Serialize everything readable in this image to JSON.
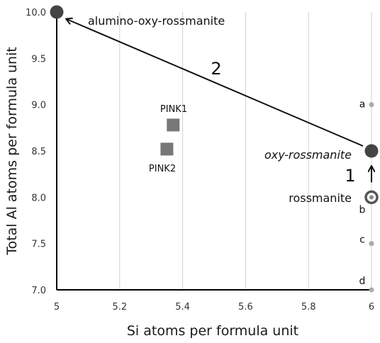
{
  "chart_data": {
    "type": "scatter",
    "xlabel": "Si atoms per formula unit",
    "ylabel": "Total Al atoms per formula unit",
    "xlim": [
      5,
      6
    ],
    "ylim": [
      7.0,
      10.0
    ],
    "x_ticks": [
      5,
      5.2,
      5.4,
      5.6,
      5.8,
      6
    ],
    "x_tick_labels": [
      "5",
      "5.2",
      "5.4",
      "5.6",
      "5.8",
      "6"
    ],
    "y_ticks": [
      7.0,
      7.5,
      8.0,
      8.5,
      9.0,
      9.5,
      10.0
    ],
    "y_tick_labels": [
      "7.0",
      "7.5",
      "8.0",
      "8.5",
      "9.0",
      "9.5",
      "10.0"
    ],
    "grid": "vertical",
    "endmembers": [
      {
        "label": "alumino-oxy-rossmanite",
        "x": 5,
        "y": 10.0,
        "marker": "circle",
        "color": "#444444"
      },
      {
        "label": "oxy-rossmanite",
        "x": 6,
        "y": 8.5,
        "marker": "circle",
        "color": "#444444",
        "italic": true
      },
      {
        "label": "rossmanite",
        "x": 6,
        "y": 8.0,
        "marker": "ring",
        "color": "#555555"
      }
    ],
    "samples": [
      {
        "label": "PINK1",
        "x": 5.37,
        "y": 8.78,
        "marker": "square",
        "color": "#777777"
      },
      {
        "label": "PINK2",
        "x": 5.35,
        "y": 8.52,
        "marker": "square",
        "color": "#777777"
      }
    ],
    "minor_points": [
      {
        "label": "a",
        "x": 6,
        "y": 9.0
      },
      {
        "label": "b",
        "x": 6,
        "y": 8.0
      },
      {
        "label": "c",
        "x": 6,
        "y": 7.5
      },
      {
        "label": "d",
        "x": 6,
        "y": 7.0
      }
    ],
    "arrows": [
      {
        "label": "1",
        "from": [
          6,
          8.0
        ],
        "to": [
          6,
          8.5
        ]
      },
      {
        "label": "2",
        "from": [
          6,
          8.5
        ],
        "to": [
          5,
          10.0
        ]
      }
    ],
    "colors": {
      "axis": "#000000",
      "grid": "#d0d0d0",
      "minor_point": "#aaaaaa",
      "arrow": "#111111"
    }
  }
}
